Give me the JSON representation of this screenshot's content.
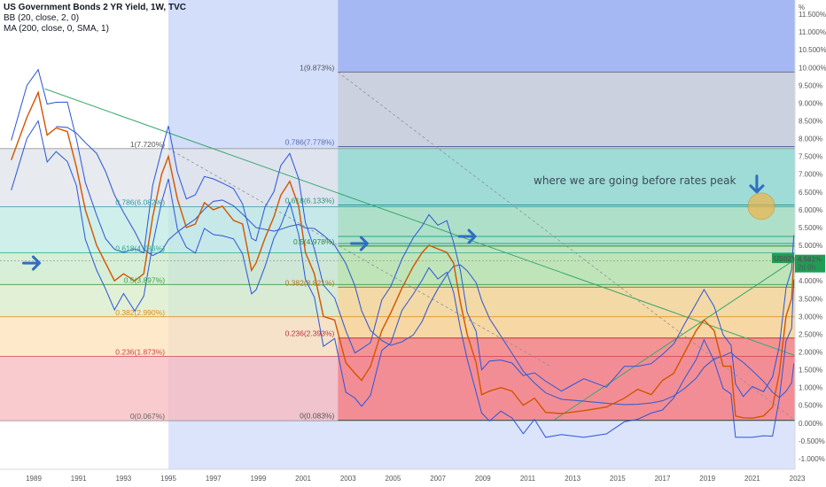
{
  "legend": {
    "title": "US Government Bonds 2 YR Yield, 1W, TVC",
    "line2": "BB (20, close, 2, 0)",
    "line3": "MA (200, close, 0, SMA, 1)"
  },
  "symbol": {
    "ticker": "US02Y",
    "price": "4.561%",
    "countdown": "2d 0h"
  },
  "colors": {
    "price": "#d35400",
    "bands": "#2b55d8",
    "ma200": "#3a5fcc",
    "trend": "#3aa76d",
    "arrow": "#2e6fbf",
    "marker": "#f0b44a",
    "badge": "#1f9d55"
  },
  "annotation": {
    "text": "where we are going  before rates peak"
  },
  "chart_data": {
    "type": "line",
    "title": "US Government Bonds 2 YR Yield, 1W, TVC",
    "xlim": [
      1987.5,
      2022.9
    ],
    "ylim": [
      -1.3,
      11.9
    ],
    "x_ticks": [
      "1989",
      "1991",
      "1993",
      "1995",
      "1997",
      "1999",
      "2001",
      "2003",
      "2005",
      "2007",
      "2009",
      "2011",
      "2013",
      "2015",
      "2017",
      "2019",
      "2021",
      "2023"
    ],
    "y_axis_unit": "%",
    "y_ticks": [
      "-1.000%",
      "-0.500%",
      "0.000%",
      "0.500%",
      "1.000%",
      "1.500%",
      "2.000%",
      "2.500%",
      "3.000%",
      "3.500%",
      "4.000%",
      "4.500%",
      "5.000%",
      "5.500%",
      "6.000%",
      "6.500%",
      "7.000%",
      "7.500%",
      "8.000%",
      "8.500%",
      "9.000%",
      "9.500%",
      "10.000%",
      "10.500%",
      "11.000%",
      "11.500%"
    ],
    "y_tick_values": [
      -1,
      -0.5,
      0,
      0.5,
      1,
      1.5,
      2,
      2.5,
      3,
      3.5,
      4,
      4.5,
      5,
      5.5,
      6,
      6.5,
      7,
      7.5,
      8,
      8.5,
      9,
      9.5,
      10,
      10.5,
      11,
      11.5
    ],
    "last_value": 4.561,
    "series": [
      {
        "x": [
          1988.0,
          1988.7,
          1989.2,
          1989.6,
          1990.0,
          1990.5,
          1990.9,
          1991.3,
          1991.8,
          1992.2,
          1992.6,
          1993.0,
          1993.5,
          1993.9,
          1994.3,
          1994.7,
          1995.0,
          1995.4,
          1995.8,
          1996.2,
          1996.6,
          1997.0,
          1997.4,
          1997.9,
          1998.3,
          1998.7,
          1998.9,
          1999.3,
          1999.7,
          2000.0,
          2000.4,
          2000.8,
          2001.1,
          2001.5,
          2001.9,
          2002.4,
          2002.9,
          2003.3,
          2003.6,
          2004.0,
          2004.5,
          2004.9,
          2005.4,
          2005.9,
          2006.3,
          2006.6,
          2007.0,
          2007.4,
          2007.7,
          2008.0,
          2008.3,
          2008.7,
          2008.95,
          2009.3,
          2009.8,
          2010.3,
          2010.8,
          2011.3,
          2011.8,
          2012.5,
          2013.5,
          2014.5,
          2015.3,
          2015.9,
          2016.5,
          2017.0,
          2017.5,
          2018.0,
          2018.5,
          2018.85,
          2019.3,
          2019.7,
          2020.05,
          2020.25,
          2020.6,
          2021.0,
          2021.5,
          2021.9,
          2022.2,
          2022.5,
          2022.75,
          2022.85
        ],
        "values": [
          7.4,
          8.6,
          9.3,
          8.1,
          8.3,
          8.2,
          7.2,
          6.0,
          5.0,
          4.5,
          4.0,
          4.2,
          4.0,
          4.2,
          5.8,
          7.0,
          7.5,
          6.3,
          5.5,
          5.6,
          6.2,
          6.0,
          6.1,
          5.7,
          5.6,
          4.3,
          4.5,
          5.2,
          5.8,
          6.4,
          6.8,
          6.1,
          4.8,
          4.2,
          3.0,
          2.9,
          1.7,
          1.4,
          1.2,
          1.6,
          2.6,
          3.1,
          3.8,
          4.4,
          4.8,
          5.0,
          4.9,
          4.8,
          4.5,
          3.4,
          2.5,
          1.7,
          0.8,
          0.9,
          1.0,
          0.9,
          0.5,
          0.7,
          0.3,
          0.27,
          0.35,
          0.45,
          0.7,
          0.95,
          0.8,
          1.2,
          1.4,
          2.0,
          2.6,
          2.9,
          2.6,
          1.6,
          1.6,
          0.2,
          0.15,
          0.14,
          0.2,
          0.45,
          1.4,
          3.0,
          3.5,
          4.56
        ]
      }
    ],
    "fibonacci": [
      {
        "levels": [
          "0(0.067%)",
          "0.236(1.873%)",
          "0.382(2.990%)",
          "0.5(3.897%)",
          "0.618(4.786%)",
          "0.786(6.082%)",
          "1(7.720%)"
        ]
      },
      {
        "levels": [
          "0(0.083%)",
          "0.236(2.393%)",
          "0.382(3.821%)",
          "0.5(4.978%)",
          "0.618(6.133%)",
          "0.786(7.778%)",
          "1(9.873%)"
        ]
      }
    ]
  }
}
